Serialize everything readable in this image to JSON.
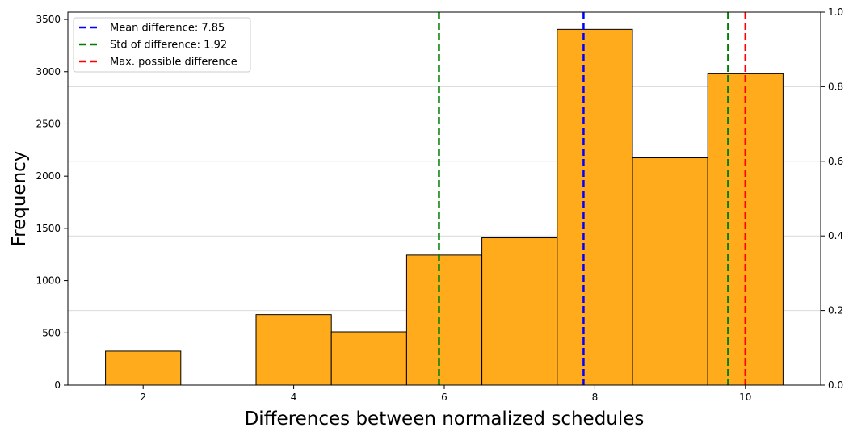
{
  "chart_data": {
    "type": "bar",
    "xlabel": "Differences between normalized schedules",
    "ylabel": "Frequency",
    "xlim": [
      1.0,
      11.0
    ],
    "ylim": [
      0,
      3570
    ],
    "y2lim": [
      0.0,
      1.0
    ],
    "xticks": [
      2,
      4,
      6,
      8,
      10
    ],
    "yticks": [
      0,
      500,
      1000,
      1500,
      2000,
      2500,
      3000,
      3500
    ],
    "y2ticks": [
      "0.0",
      "0.2",
      "0.4",
      "0.6",
      "0.8",
      "1.0"
    ],
    "grid": "horizontal lines at right-axis ticks",
    "bin_width": 1,
    "bar_color": "#ffab1c",
    "bars": [
      {
        "x": 2,
        "value": 325
      },
      {
        "x": 3,
        "value": 0
      },
      {
        "x": 4,
        "value": 675
      },
      {
        "x": 5,
        "value": 510
      },
      {
        "x": 6,
        "value": 1245
      },
      {
        "x": 7,
        "value": 1410
      },
      {
        "x": 8,
        "value": 3405
      },
      {
        "x": 9,
        "value": 2175
      },
      {
        "x": 10,
        "value": 2980
      }
    ],
    "vlines": [
      {
        "x": 7.85,
        "color": "#0000ff",
        "label": "Mean difference: 7.85",
        "in_legend": true
      },
      {
        "x": 5.93,
        "color": "#008000",
        "label": "Std of difference: 1.92",
        "in_legend": true
      },
      {
        "x": 9.77,
        "color": "#008000",
        "label": "",
        "in_legend": false
      },
      {
        "x": 10.0,
        "color": "#ff0000",
        "label": "Max. possible difference",
        "in_legend": true
      }
    ],
    "legend_position": "top-left"
  }
}
